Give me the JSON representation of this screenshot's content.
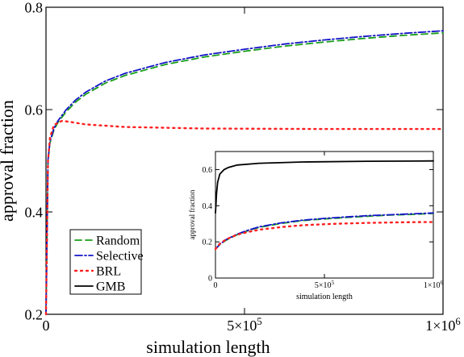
{
  "chart_data": [
    {
      "type": "line",
      "xlabel": "simulation length",
      "ylabel": "approval fraction",
      "xlim": [
        0,
        1000000
      ],
      "ylim": [
        0.2,
        0.8
      ],
      "x_ticks": [
        {
          "value": 0,
          "base": "0",
          "exp": ""
        },
        {
          "value": 500000,
          "base": "5×10",
          "exp": "5"
        },
        {
          "value": 1000000,
          "base": "1×10",
          "exp": "6"
        }
      ],
      "y_ticks": [
        {
          "value": 0.2,
          "label": "0.2"
        },
        {
          "value": 0.4,
          "label": "0.4"
        },
        {
          "value": 0.6,
          "label": "0.6"
        },
        {
          "value": 0.8,
          "label": "0.8"
        }
      ],
      "legend_position": "bottom-left",
      "series": [
        {
          "name": "Random",
          "color": "#1a9e1a",
          "dash": "8,5",
          "x": [
            0,
            5000,
            10000,
            20000,
            30000,
            50000,
            75000,
            100000,
            150000,
            200000,
            300000,
            400000,
            500000,
            600000,
            700000,
            800000,
            900000,
            1000000
          ],
          "y": [
            0.2,
            0.5,
            0.535,
            0.56,
            0.575,
            0.595,
            0.615,
            0.63,
            0.652,
            0.667,
            0.688,
            0.703,
            0.714,
            0.724,
            0.732,
            0.739,
            0.745,
            0.75
          ]
        },
        {
          "name": "Selective",
          "color": "#1414c8",
          "dash": "9,3,2,3",
          "x": [
            0,
            5000,
            10000,
            20000,
            30000,
            50000,
            75000,
            100000,
            150000,
            200000,
            300000,
            400000,
            500000,
            600000,
            700000,
            800000,
            900000,
            1000000
          ],
          "y": [
            0.2,
            0.502,
            0.538,
            0.563,
            0.578,
            0.599,
            0.619,
            0.634,
            0.656,
            0.671,
            0.692,
            0.707,
            0.718,
            0.728,
            0.736,
            0.743,
            0.749,
            0.754
          ]
        },
        {
          "name": "BRL",
          "color": "#ff2020",
          "dash": "2,5",
          "x": [
            0,
            5000,
            10000,
            20000,
            40000,
            60000,
            100000,
            200000,
            400000,
            700000,
            1000000
          ],
          "y": [
            0.2,
            0.5,
            0.545,
            0.57,
            0.578,
            0.576,
            0.571,
            0.566,
            0.563,
            0.562,
            0.562
          ]
        },
        {
          "name": "GMB",
          "color": "#000000",
          "dash": "",
          "x": [],
          "y": []
        }
      ]
    },
    {
      "type": "line",
      "xlabel": "simulation length",
      "ylabel": "approval fraction",
      "xlim": [
        0,
        1000000
      ],
      "ylim": [
        0,
        0.7
      ],
      "x_ticks": [
        {
          "value": 0,
          "base": "0",
          "exp": ""
        },
        {
          "value": 500000,
          "base": "5×10",
          "exp": "5"
        },
        {
          "value": 1000000,
          "base": "1×10",
          "exp": "6"
        }
      ],
      "y_ticks": [
        {
          "value": 0,
          "label": "0"
        },
        {
          "value": 0.2,
          "label": "0.2"
        },
        {
          "value": 0.4,
          "label": "0.4"
        },
        {
          "value": 0.6,
          "label": "0.6"
        }
      ],
      "series": [
        {
          "name": "GMB",
          "color": "#000000",
          "dash": "",
          "x": [
            0,
            5000,
            10000,
            20000,
            40000,
            60000,
            100000,
            200000,
            400000,
            700000,
            1000000
          ],
          "y": [
            0.36,
            0.47,
            0.53,
            0.575,
            0.6,
            0.612,
            0.625,
            0.635,
            0.642,
            0.646,
            0.648
          ]
        },
        {
          "name": "Random",
          "color": "#1a9e1a",
          "dash": "8,5",
          "x": [
            0,
            20000,
            50000,
            100000,
            150000,
            200000,
            300000,
            400000,
            500000,
            600000,
            700000,
            800000,
            900000,
            1000000
          ],
          "y": [
            0.16,
            0.185,
            0.21,
            0.24,
            0.262,
            0.28,
            0.302,
            0.318,
            0.327,
            0.335,
            0.342,
            0.348,
            0.352,
            0.357
          ]
        },
        {
          "name": "Selective",
          "color": "#1414c8",
          "dash": "9,3,2,3",
          "x": [
            0,
            20000,
            50000,
            100000,
            150000,
            200000,
            300000,
            400000,
            500000,
            600000,
            700000,
            800000,
            900000,
            1000000
          ],
          "y": [
            0.16,
            0.187,
            0.213,
            0.243,
            0.265,
            0.283,
            0.305,
            0.32,
            0.33,
            0.338,
            0.345,
            0.35,
            0.355,
            0.36
          ]
        },
        {
          "name": "BRL",
          "color": "#ff2020",
          "dash": "2,5",
          "x": [
            0,
            20000,
            50000,
            100000,
            150000,
            200000,
            300000,
            400000,
            500000,
            600000,
            700000,
            800000,
            900000,
            1000000
          ],
          "y": [
            0.16,
            0.19,
            0.215,
            0.24,
            0.255,
            0.267,
            0.282,
            0.292,
            0.298,
            0.302,
            0.305,
            0.307,
            0.309,
            0.31
          ]
        }
      ]
    }
  ]
}
